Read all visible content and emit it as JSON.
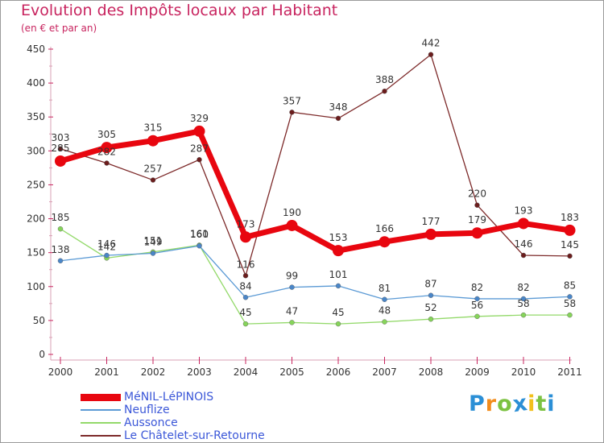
{
  "title": "Evolution des Impôts locaux par Habitant",
  "subtitle": "(en € et par an)",
  "chart_data": {
    "type": "line",
    "title": "Evolution des Impôts locaux par Habitant",
    "subtitle": "(en € et par an)",
    "xlabel": "",
    "ylabel": "",
    "ylim": [
      0,
      450
    ],
    "yticks": [
      0,
      50,
      100,
      150,
      200,
      250,
      300,
      350,
      400,
      450
    ],
    "grid": false,
    "legend_position": "bottom-left",
    "categories": [
      "2000",
      "2001",
      "2002",
      "2003",
      "2004",
      "2005",
      "2006",
      "2007",
      "2008",
      "2009",
      "2010",
      "2011"
    ],
    "series": [
      {
        "name": "MéNIL-LéPINOIS",
        "color": "#e8060f",
        "marker_color": "#e8060f",
        "values": [
          285,
          305,
          315,
          329,
          173,
          190,
          153,
          166,
          177,
          179,
          193,
          183
        ]
      },
      {
        "name": "Neuflize",
        "color": "#5b9ad5",
        "marker_color": "#4a86c8",
        "values": [
          138,
          146,
          149,
          160,
          84,
          99,
          101,
          81,
          87,
          82,
          82,
          85
        ]
      },
      {
        "name": "Aussonce",
        "color": "#93d96a",
        "marker_color": "#86d45a",
        "values": [
          185,
          142,
          151,
          161,
          45,
          47,
          45,
          48,
          52,
          56,
          58,
          58
        ]
      },
      {
        "name": "Le Châtelet-sur-Retourne",
        "color": "#7d2a2a",
        "marker_color": "#6b1d1d",
        "values": [
          303,
          282,
          257,
          287,
          116,
          357,
          348,
          388,
          442,
          220,
          146,
          145
        ]
      }
    ]
  },
  "logo": {
    "letters": [
      "P",
      "r",
      "o",
      "x",
      "i",
      "t",
      "i"
    ],
    "colors": [
      "#2b8fd6",
      "#f28c1c",
      "#7cc242",
      "#2b8fd6",
      "#f2c01c",
      "#7cc242",
      "#2b8fd6"
    ]
  }
}
